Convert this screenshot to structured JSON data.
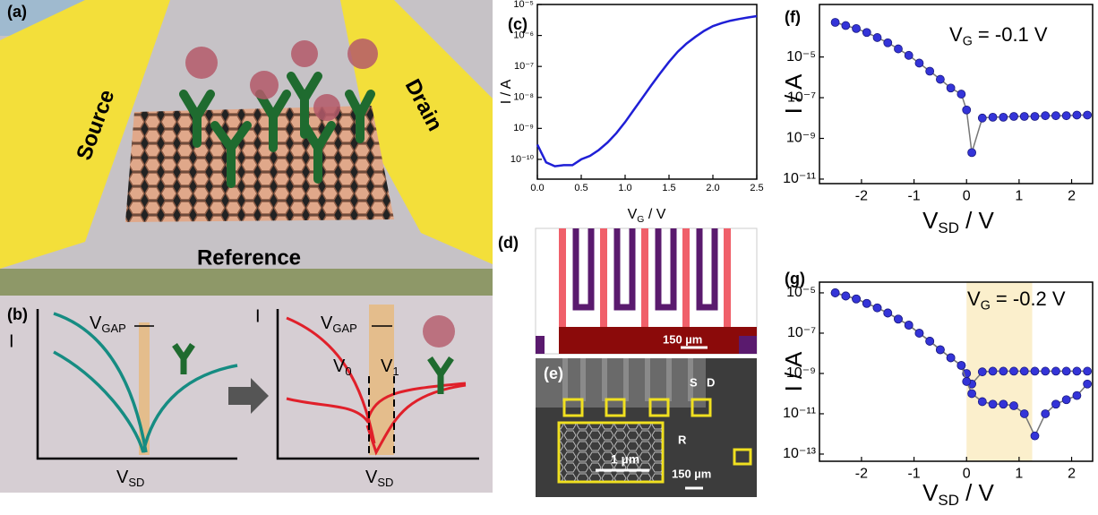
{
  "chart_data": [
    {
      "type": "line",
      "panel": "(c)",
      "y_label": "I / A",
      "x_label": [
        "V",
        "G",
        " / V"
      ],
      "color": "#1f1fd6",
      "ylog": true,
      "x": [
        0,
        0.1,
        0.2,
        0.3,
        0.4,
        0.5,
        0.6,
        0.7,
        0.8,
        0.9,
        1.0,
        1.1,
        1.2,
        1.3,
        1.4,
        1.5,
        1.6,
        1.7,
        1.8,
        1.9,
        2.0,
        2.1,
        2.2,
        2.3,
        2.4,
        2.5
      ],
      "values": [
        3e-10,
        8e-11,
        6e-11,
        6.5e-11,
        6.5e-11,
        1e-10,
        1.3e-10,
        2e-10,
        3.5e-10,
        7e-10,
        1.6e-09,
        4e-09,
        1e-08,
        2.5e-08,
        6e-08,
        1.4e-07,
        3e-07,
        5.5e-07,
        9e-07,
        1.4e-06,
        2e-06,
        2.5e-06,
        3e-06,
        3.4e-06,
        3.8e-06,
        4.2e-06
      ],
      "xlim": [
        0,
        2.5
      ],
      "xticks": [
        {
          "value": 0,
          "label": "0.0"
        },
        0.5,
        {
          "value": 1,
          "label": "1.0"
        },
        1.5,
        {
          "value": 2,
          "label": "2.0"
        },
        2.5
      ],
      "ylim": [
        2.3e-11,
        1e-05
      ],
      "yticks": [
        {
          "value": 1e-10,
          "label": "10⁻¹⁰"
        },
        {
          "value": 1e-09,
          "label": "10⁻⁹"
        },
        {
          "value": 1e-08,
          "label": "10⁻⁸"
        },
        {
          "value": 1e-07,
          "label": "10⁻⁷"
        },
        {
          "value": 1e-06,
          "label": "10⁻⁶"
        },
        {
          "value": 1e-05,
          "label": "10⁻⁵"
        }
      ]
    },
    {
      "type": "line",
      "panel": "(f)",
      "y_label": "I / A",
      "x_label": [
        "V",
        "SD",
        " / V"
      ],
      "annotation": [
        "V",
        "G",
        " = -0.1 V"
      ],
      "ylog": true,
      "markers": true,
      "x": [
        -2.5,
        -2.3,
        -2.1,
        -1.9,
        -1.7,
        -1.5,
        -1.3,
        -1.1,
        -0.9,
        -0.7,
        -0.5,
        -0.3,
        -0.1,
        0.0,
        0.1,
        0.3,
        0.5,
        0.7,
        0.9,
        1.1,
        1.3,
        1.5,
        1.7,
        1.9,
        2.1,
        2.3
      ],
      "series": [
        {
          "color": "#3434d8",
          "values": [
            0.0005,
            0.00035,
            0.00025,
            0.00016,
            9e-05,
            5e-05,
            2.5e-05,
            1.2e-05,
            5e-06,
            2e-06,
            8e-07,
            3e-07,
            1.5e-07,
            2.5e-08,
            2e-10,
            1e-08,
            1.1e-08,
            1.1e-08,
            1.2e-08,
            1.2e-08,
            1.2e-08,
            1.3e-08,
            1.3e-08,
            1.3e-08,
            1.4e-08,
            1.4e-08
          ]
        }
      ],
      "xlim": [
        -2.8,
        2.4
      ],
      "xticks": [
        -2,
        -1,
        0,
        1,
        2
      ],
      "ylim": [
        6e-12,
        0.0038
      ],
      "yticks": [
        {
          "value": 1e-11,
          "label": "10⁻¹¹"
        },
        {
          "value": 1e-09,
          "label": "10⁻⁹"
        },
        {
          "value": 1e-07,
          "label": "10⁻⁷"
        },
        {
          "value": 1e-05,
          "label": "10⁻⁵"
        }
      ]
    },
    {
      "type": "line",
      "panel": "(g)",
      "y_label": "I / A",
      "x_label": [
        "V",
        "SD",
        " / V"
      ],
      "annotation": [
        "V",
        "G",
        " = -0.2 V"
      ],
      "ylog": true,
      "markers": true,
      "shade": {
        "x": [
          0,
          1.25
        ],
        "color": "#fbefcc"
      },
      "x": [
        -2.5,
        -2.3,
        -2.1,
        -1.9,
        -1.7,
        -1.5,
        -1.3,
        -1.1,
        -0.9,
        -0.7,
        -0.5,
        -0.3,
        -0.1,
        0.0,
        0.1,
        0.3,
        0.5,
        0.7,
        0.9,
        1.1,
        1.3,
        1.5,
        1.7,
        1.9,
        2.1,
        2.3
      ],
      "series": [
        {
          "color": "#3434d8",
          "values": [
            1e-05,
            7e-06,
            5e-06,
            3e-06,
            1.8e-06,
            1e-06,
            5e-07,
            2.5e-07,
            1e-07,
            4e-08,
            1.5e-08,
            6e-09,
            2.5e-09,
            1e-09,
            3e-10,
            1.2e-09,
            1.3e-09,
            1.3e-09,
            1.3e-09,
            1.3e-09,
            1.3e-09,
            1.3e-09,
            1.3e-09,
            1.3e-09,
            1.3e-09,
            1.3e-09
          ]
        },
        {
          "color": "#3434d8",
          "values": [
            1e-05,
            7e-06,
            5e-06,
            3e-06,
            1.8e-06,
            1e-06,
            5e-07,
            2.5e-07,
            1e-07,
            4e-08,
            1.5e-08,
            6e-09,
            2.5e-09,
            4e-10,
            1e-10,
            4e-11,
            3e-11,
            3e-11,
            2.5e-11,
            1e-11,
            8e-13,
            1e-11,
            3e-11,
            5e-11,
            8e-11,
            3e-10
          ]
        }
      ],
      "xlim": [
        -2.8,
        2.4
      ],
      "xticks": [
        -2,
        -1,
        0,
        1,
        2
      ],
      "ylim": [
        4.4e-14,
        3.4e-05
      ],
      "yticks": [
        {
          "value": 1e-13,
          "label": "10⁻¹³"
        },
        {
          "value": 1e-11,
          "label": "10⁻¹¹"
        },
        {
          "value": 1e-09,
          "label": "10⁻⁹"
        },
        {
          "value": 1e-07,
          "label": "10⁻⁷"
        },
        {
          "value": 1e-05,
          "label": "10⁻⁵"
        }
      ]
    }
  ],
  "panels": {
    "a": {
      "label": "(a)",
      "source": "Source",
      "drain": "Drain",
      "reference": "Reference"
    },
    "b": {
      "label": "(b)",
      "left": {
        "y": "I",
        "gap": [
          "V",
          "GAP"
        ],
        "x": [
          "V",
          "SD"
        ]
      },
      "right": {
        "y": "I",
        "gap": [
          "V",
          "GAP"
        ],
        "x": [
          "V",
          "SD"
        ],
        "v0": [
          "V",
          "0"
        ],
        "v1": [
          "V",
          "1"
        ]
      }
    },
    "d": {
      "label": "(d)",
      "scale": "150 µm"
    },
    "e": {
      "label": "(e)",
      "s": "S",
      "d": "D",
      "r": "R",
      "inset_scale": "1 µm",
      "scale": "150 µm"
    }
  }
}
